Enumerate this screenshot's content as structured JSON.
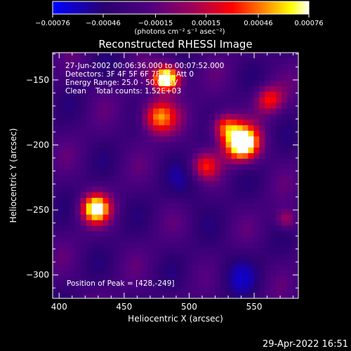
{
  "chart_data": {
    "type": "heatmap",
    "title": "Reconstructed RHESSI Image",
    "xlabel": "Heliocentric X (arcsec)",
    "ylabel": "Heliocentric Y (arcsec)",
    "xlim": [
      395,
      584
    ],
    "ylim": [
      -318,
      -129
    ],
    "x_ticks": [
      400,
      450,
      500,
      550
    ],
    "x_tick_labels": [
      "400",
      "450",
      "500",
      "550"
    ],
    "y_ticks": [
      -150,
      -200,
      -250,
      -300
    ],
    "y_tick_labels": [
      "−150",
      "−200",
      "−250",
      "−300"
    ],
    "colorbar": {
      "min": -0.00076,
      "max": 0.00076,
      "ticks": [
        -0.00076,
        -0.00046,
        -0.00015,
        0.00015,
        0.00046,
        0.00076
      ],
      "tick_labels": [
        "−0.00076",
        "−0.00046",
        "−0.00015",
        "0.00015",
        "0.00046",
        "0.00076"
      ],
      "units_label": "(photons cm⁻² s⁻¹ asec⁻²)",
      "colormap": [
        "#0000ff",
        "#2a0070",
        "#500080",
        "#a0005a",
        "#ff0000",
        "#ff8000",
        "#ffff00",
        "#ffffff"
      ]
    },
    "annotations": [
      "27-Jun-2002 00:06:36.000 to 00:07:52.000",
      "Detectors: 3F 4F 5F 6F 7F 8F, Att 0",
      "Energy Range: 25.0 - 50.0 keV",
      "Clean    Total counts: 1.52E+03"
    ],
    "peak_label": "Position of Peak = [428,-249]",
    "peak": [
      428,
      -249
    ]
  },
  "timestamp": "29-Apr-2022 16:51"
}
